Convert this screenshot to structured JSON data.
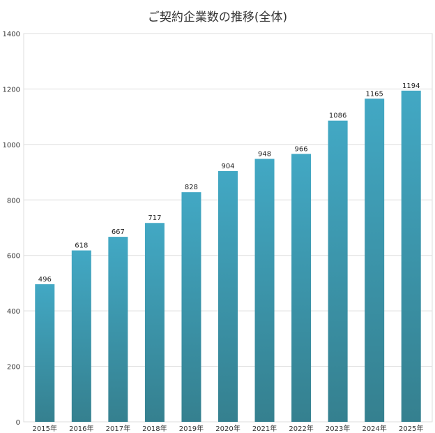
{
  "chart_data": {
    "type": "bar",
    "title": "ご契約企業数の推移(全体)",
    "categories": [
      "2015年",
      "2016年",
      "2017年",
      "2018年",
      "2019年",
      "2020年",
      "2021年",
      "2022年",
      "2023年",
      "2024年",
      "2025年"
    ],
    "values": [
      496,
      618,
      667,
      717,
      828,
      904,
      948,
      966,
      1086,
      1165,
      1194
    ],
    "xlabel": "",
    "ylabel": "",
    "ylim": [
      0,
      1400
    ],
    "yticks": [
      0,
      200,
      400,
      600,
      800,
      1000,
      1200,
      1400
    ],
    "grid": true,
    "legend": "none",
    "bar_color_top": "#42a8c4",
    "bar_color_bottom": "#35808f",
    "grid_color": "#dddddd"
  }
}
